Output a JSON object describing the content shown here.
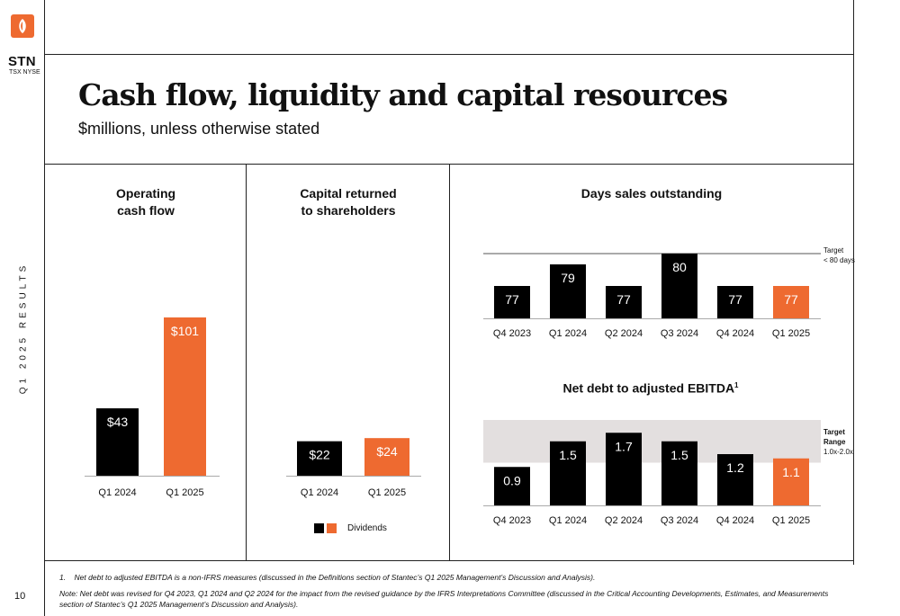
{
  "brand": {
    "ticker": "STN",
    "exchange": "TSX NYSE",
    "logo_icon": "stantec-logo-icon",
    "accent_color": "#ee6a30",
    "dark_color": "#000000"
  },
  "sidebar": {
    "vertical_label": "Q1 2025 RESULTS",
    "page_number": "10"
  },
  "header": {
    "title": "Cash flow, liquidity and capital resources",
    "subtitle": "$millions, unless otherwise stated"
  },
  "chart_data": [
    {
      "id": "ocf",
      "type": "bar",
      "title": "Operating\ncash flow",
      "categories": [
        "Q1 2024",
        "Q1 2025"
      ],
      "values": [
        43,
        101
      ],
      "data_labels": [
        "$43",
        "$101"
      ],
      "colors": [
        "#000000",
        "#ee6a30"
      ],
      "ylim": [
        0,
        101
      ]
    },
    {
      "id": "capret",
      "type": "bar",
      "title": "Capital returned\nto shareholders",
      "categories": [
        "Q1 2024",
        "Q1 2025"
      ],
      "values": [
        22,
        24
      ],
      "data_labels": [
        "$22",
        "$24"
      ],
      "colors": [
        "#000000",
        "#ee6a30"
      ],
      "ylim": [
        0,
        101
      ],
      "legend": {
        "label": "Dividends",
        "placement": "bottom"
      }
    },
    {
      "id": "dso",
      "type": "bar",
      "title": "Days sales outstanding",
      "categories": [
        "Q4 2023",
        "Q1 2024",
        "Q2 2024",
        "Q3 2024",
        "Q4 2024",
        "Q1 2025"
      ],
      "values": [
        77,
        79,
        77,
        80,
        77,
        77
      ],
      "data_labels": [
        "77",
        "79",
        "77",
        "80",
        "77",
        "77"
      ],
      "colors": [
        "#000000",
        "#000000",
        "#000000",
        "#000000",
        "#000000",
        "#ee6a30"
      ],
      "target": {
        "value": 80,
        "label_line1": "Target",
        "label_line2": "< 80 days"
      }
    },
    {
      "id": "netdebt",
      "type": "bar",
      "title": "Net debt to adjusted EBITDA",
      "title_superscript": "1",
      "categories": [
        "Q4 2023",
        "Q1 2024",
        "Q2 2024",
        "Q3 2024",
        "Q4 2024",
        "Q1 2025"
      ],
      "values": [
        0.9,
        1.5,
        1.7,
        1.5,
        1.2,
        1.1
      ],
      "data_labels": [
        "0.9",
        "1.5",
        "1.7",
        "1.5",
        "1.2",
        "1.1"
      ],
      "colors": [
        "#000000",
        "#000000",
        "#000000",
        "#000000",
        "#000000",
        "#ee6a30"
      ],
      "target_range": {
        "min": 1.0,
        "max": 2.0,
        "label_line1": "Target",
        "label_line2": "Range",
        "label_line3": "1.0x-2.0x"
      }
    }
  ],
  "footnotes": {
    "note1_number": "1.",
    "note1": "Net debt to adjusted EBITDA is a non-IFRS measures (discussed in the Definitions section of Stantec’s Q1 2025 Management’s Discussion and Analysis).",
    "note2": "Note: Net debt was revised for Q4 2023, Q1 2024 and Q2 2024 for the impact from the revised guidance by the IFRS Interpretations Committee (discussed in the Critical Accounting Developments, Estimates, and Measurements section of Stantec’s Q1 2025 Management’s Discussion and Analysis)."
  }
}
